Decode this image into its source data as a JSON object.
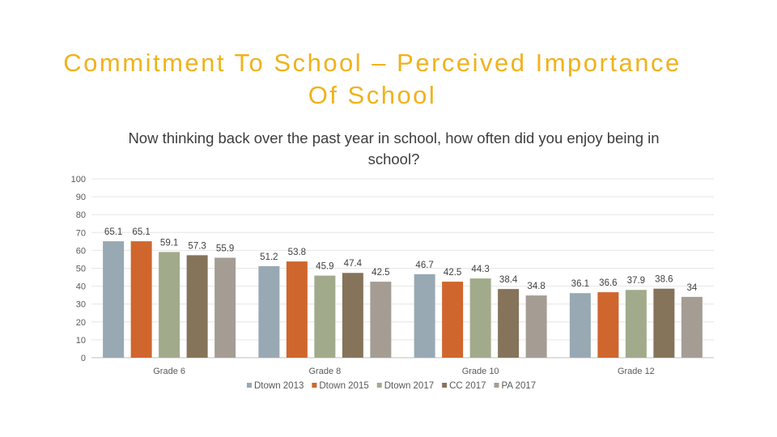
{
  "slide": {
    "title": "Commitment To School – Perceived Importance Of School"
  },
  "chart_data": {
    "type": "bar",
    "title": "Now thinking back over the past year in school, how often did you enjoy being in school?",
    "xlabel": "",
    "ylabel": "",
    "ylim": [
      0,
      100
    ],
    "yticks": [
      0,
      10,
      20,
      30,
      40,
      50,
      60,
      70,
      80,
      90,
      100
    ],
    "grid": true,
    "legend_position": "bottom",
    "categories": [
      "Grade 6",
      "Grade 8",
      "Grade 10",
      "Grade 12"
    ],
    "series": [
      {
        "name": "Dtown 2013",
        "color": "#98a9b3",
        "values": [
          65.1,
          51.2,
          46.7,
          36.1
        ]
      },
      {
        "name": "Dtown 2015",
        "color": "#cf662e",
        "values": [
          65.1,
          53.8,
          42.5,
          36.6
        ]
      },
      {
        "name": "Dtown 2017",
        "color": "#a1ab8b",
        "values": [
          59.1,
          45.9,
          44.3,
          37.9
        ]
      },
      {
        "name": "CC 2017",
        "color": "#85745a",
        "values": [
          57.3,
          47.4,
          38.4,
          38.6
        ]
      },
      {
        "name": "PA 2017",
        "color": "#a59d94",
        "values": [
          55.9,
          42.5,
          34.8,
          34
        ]
      }
    ]
  }
}
